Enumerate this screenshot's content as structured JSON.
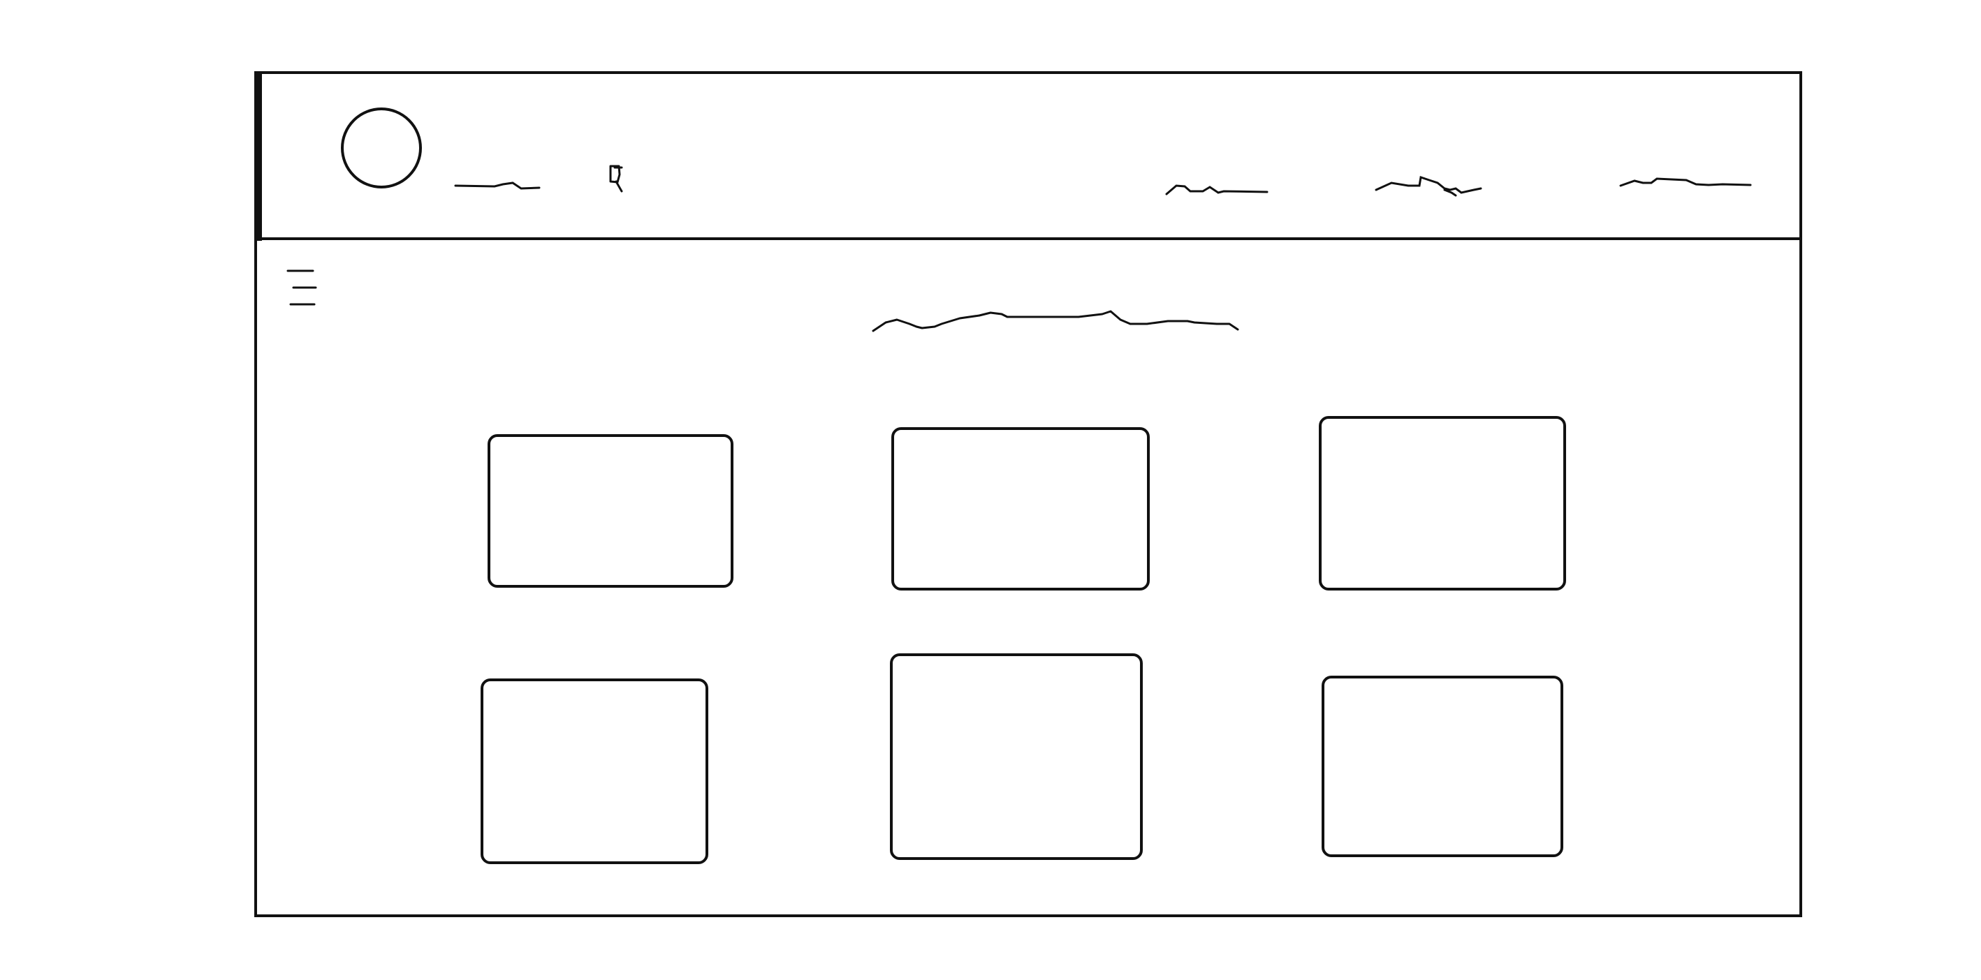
{
  "header": {
    "logo_icon": "avatar-circle",
    "brand_scribble": "illegible-scribble",
    "search_icon": "search-icon",
    "nav": [
      {
        "id": "nav-1",
        "text": ""
      },
      {
        "id": "nav-2",
        "text": ""
      },
      {
        "id": "nav-3",
        "text": ""
      }
    ]
  },
  "menu": {
    "icon": "hamburger-menu-icon"
  },
  "main": {
    "title": "",
    "cards": [
      {
        "id": "card-1"
      },
      {
        "id": "card-2"
      },
      {
        "id": "card-3"
      },
      {
        "id": "card-4"
      },
      {
        "id": "card-5"
      },
      {
        "id": "card-6"
      }
    ]
  },
  "colors": {
    "stroke": "#111111",
    "background": "#ffffff"
  }
}
